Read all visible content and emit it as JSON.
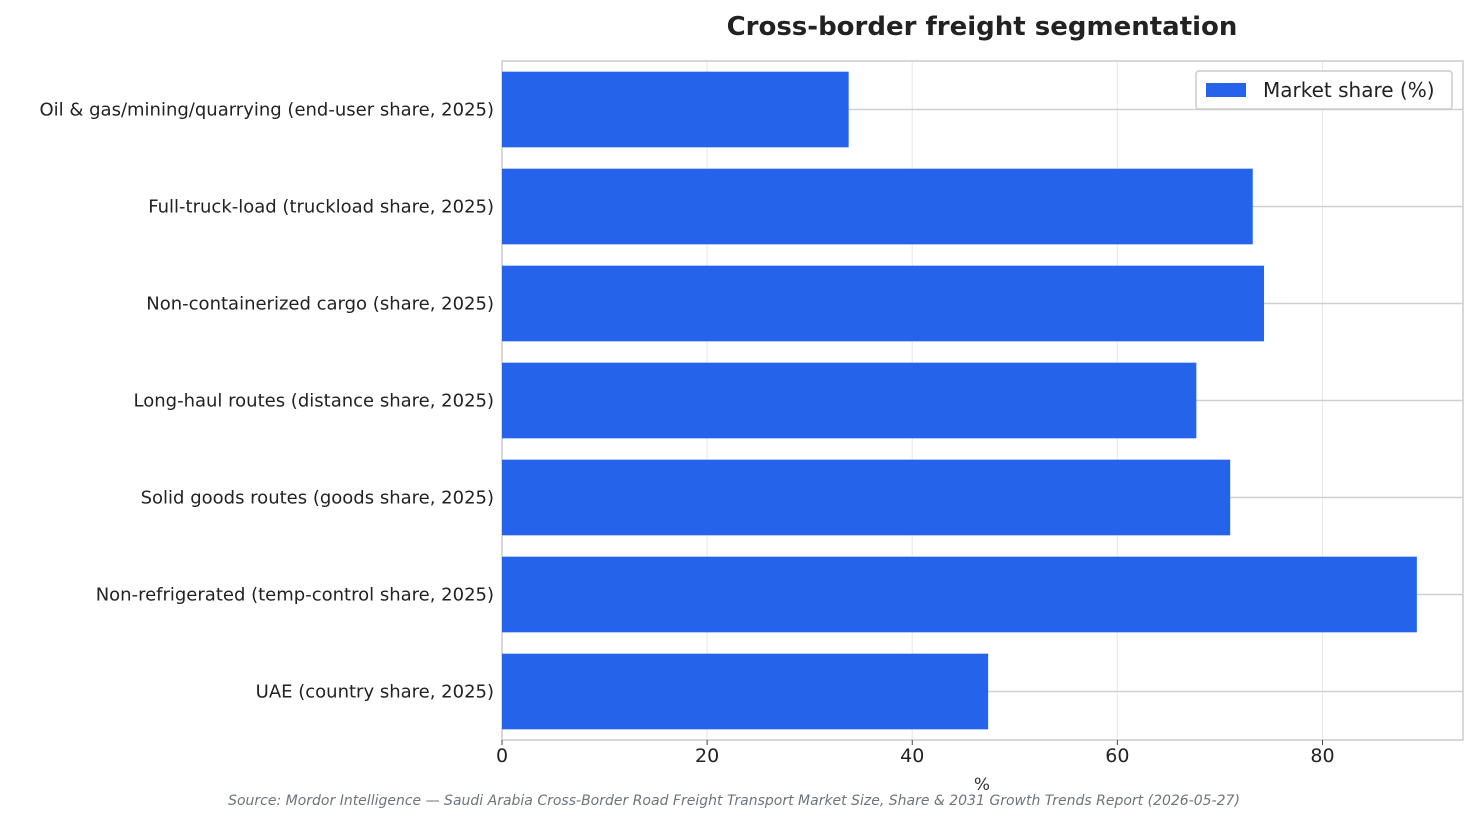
{
  "chart_data": {
    "type": "bar",
    "orientation": "horizontal",
    "title": "Cross-border freight segmentation",
    "xlabel": "%",
    "ylabel": "",
    "categories": [
      "Oil & gas/mining/quarrying (end-user share, 2025)",
      "Full-truck-load (truckload share, 2025)",
      "Non-containerized cargo (share, 2025)",
      "Long-haul routes (distance share, 2025)",
      "Solid goods routes (goods share, 2025)",
      "Non-refrigerated (temp-control share, 2025)",
      "UAE (country share, 2025)"
    ],
    "series": [
      {
        "name": "Market share (%)",
        "color": "#2563eb",
        "values": [
          33.8,
          73.2,
          74.3,
          67.7,
          71.0,
          89.2,
          47.4
        ]
      }
    ],
    "xlim": [
      0,
      93.7
    ],
    "xticks": [
      0,
      20,
      40,
      60,
      80
    ],
    "grid": true,
    "legend_position": "top-right",
    "source": "Source: Mordor Intelligence — Saudi Arabia Cross-Border Road Freight Transport Market Size, Share & 2031 Growth Trends Report (2026-05-27)"
  }
}
